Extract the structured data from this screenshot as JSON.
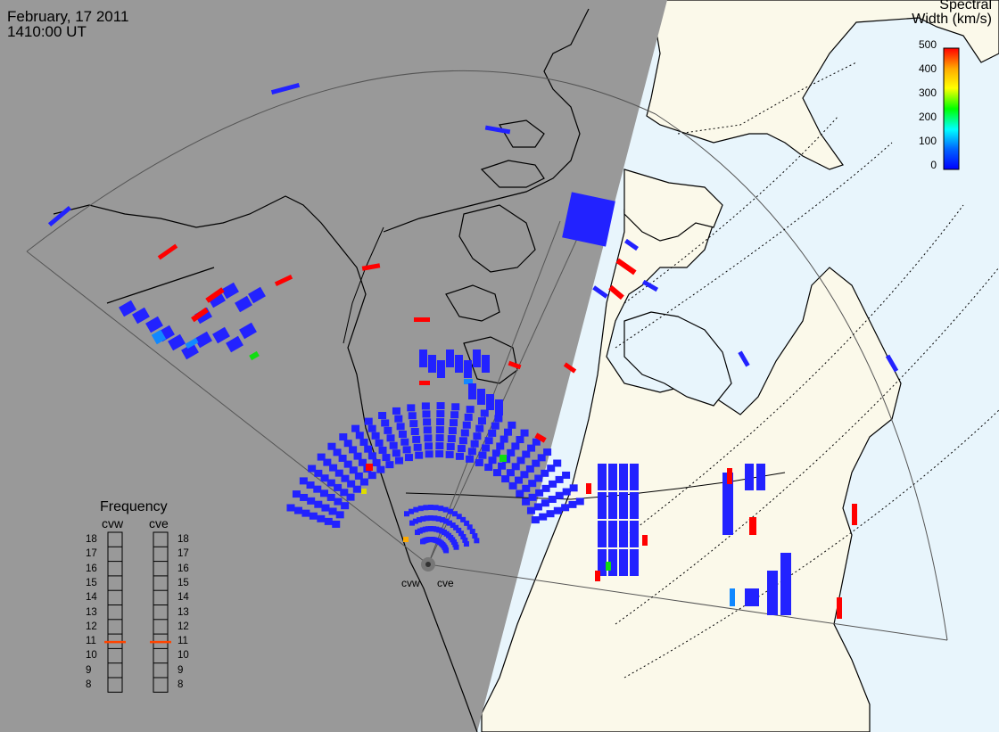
{
  "header": {
    "date": "February, 17 2011",
    "time": "1410:00 UT"
  },
  "colorbar": {
    "title_line1": "Spectral",
    "title_line2": "Width (km/s)",
    "ticks": [
      "500",
      "400",
      "300",
      "200",
      "100",
      "0"
    ],
    "stops": [
      "#ff0000",
      "#ffaa00",
      "#ffff00",
      "#00ff00",
      "#00ffff",
      "#0066ff",
      "#0000ff"
    ]
  },
  "frequency": {
    "title": "Frequency",
    "radars": [
      "cvw",
      "cve"
    ],
    "levels": [
      "18",
      "17",
      "16",
      "15",
      "14",
      "13",
      "12",
      "11",
      "10",
      "9",
      "8"
    ],
    "selected": {
      "cvw": 11,
      "cve": 11
    },
    "marker_color": "#ff4400"
  },
  "sites": [
    "cvw",
    "cve"
  ],
  "colors": {
    "night": "#999999",
    "day_land": "#fbf9ea",
    "water": "#e8f5fc",
    "low_width": "#2222ff",
    "high_width": "#ff0000",
    "mid_width": "#11dd11",
    "cyan_width": "#1188ff"
  }
}
